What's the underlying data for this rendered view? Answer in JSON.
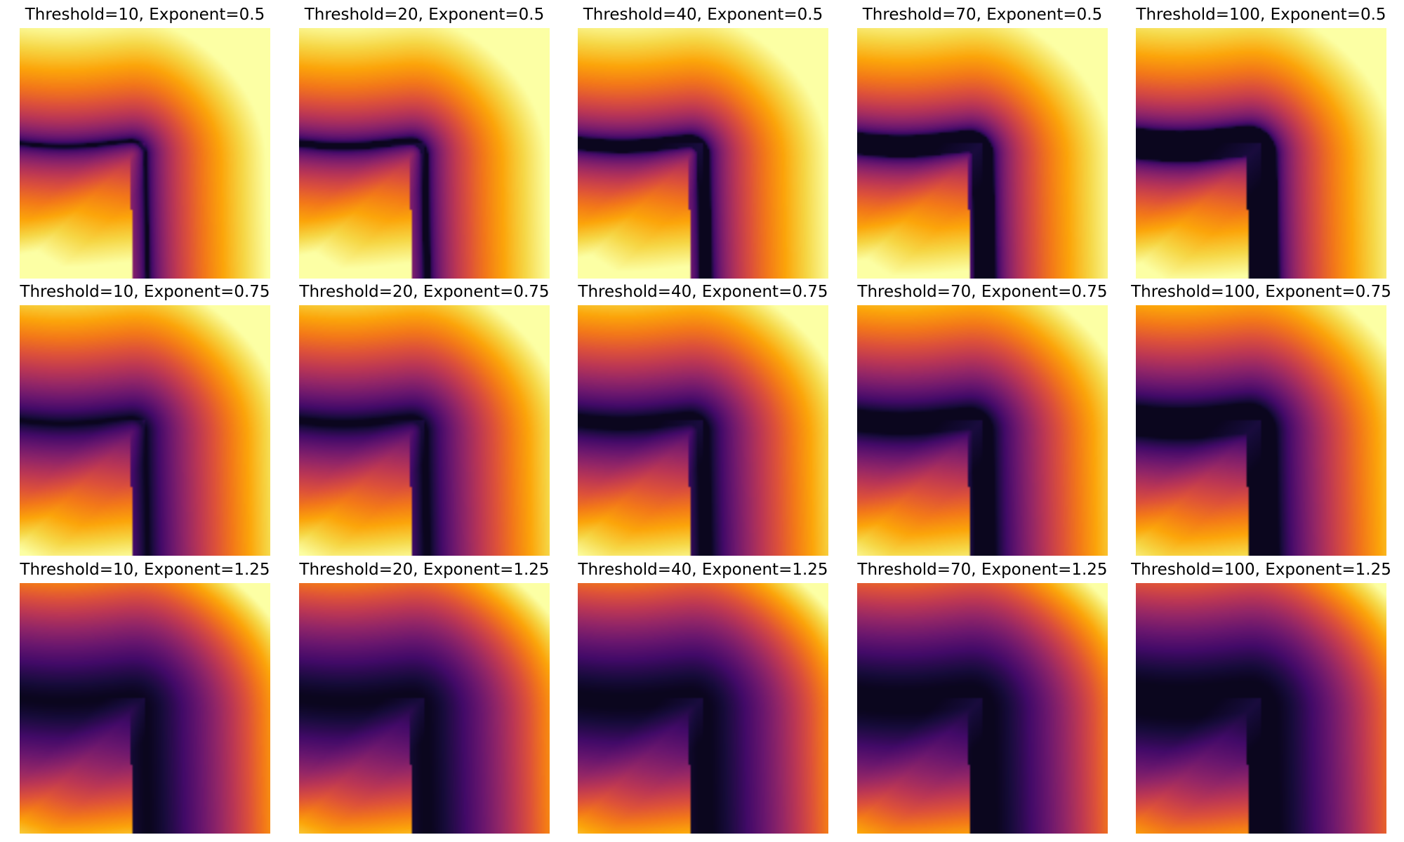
{
  "chart_data": {
    "type": "heatmap",
    "title": "",
    "colormap": "inferno",
    "axes_visible": false,
    "grid": false,
    "rows": [
      {
        "exponent": 0.5,
        "panels": [
          {
            "title": "Threshold=10, Exponent=0.5",
            "threshold": 10,
            "exponent": 0.5
          },
          {
            "title": "Threshold=20, Exponent=0.5",
            "threshold": 20,
            "exponent": 0.5
          },
          {
            "title": "Threshold=40, Exponent=0.5",
            "threshold": 40,
            "exponent": 0.5
          },
          {
            "title": "Threshold=70, Exponent=0.5",
            "threshold": 70,
            "exponent": 0.5
          },
          {
            "title": "Threshold=100, Exponent=0.5",
            "threshold": 100,
            "exponent": 0.5
          }
        ]
      },
      {
        "exponent": 0.75,
        "panels": [
          {
            "title": "Threshold=10, Exponent=0.75",
            "threshold": 10,
            "exponent": 0.75
          },
          {
            "title": "Threshold=20, Exponent=0.75",
            "threshold": 20,
            "exponent": 0.75
          },
          {
            "title": "Threshold=40, Exponent=0.75",
            "threshold": 40,
            "exponent": 0.75
          },
          {
            "title": "Threshold=70, Exponent=0.75",
            "threshold": 70,
            "exponent": 0.75
          },
          {
            "title": "Threshold=100, Exponent=0.75",
            "threshold": 100,
            "exponent": 0.75
          }
        ]
      },
      {
        "exponent": 1.25,
        "panels": [
          {
            "title": "Threshold=10, Exponent=1.25",
            "threshold": 10,
            "exponent": 1.25
          },
          {
            "title": "Threshold=20, Exponent=1.25",
            "threshold": 20,
            "exponent": 1.25
          },
          {
            "title": "Threshold=40, Exponent=1.25",
            "threshold": 40,
            "exponent": 1.25
          },
          {
            "title": "Threshold=70, Exponent=1.25",
            "threshold": 70,
            "exponent": 1.25
          },
          {
            "title": "Threshold=100, Exponent=1.25",
            "threshold": 100,
            "exponent": 1.25
          }
        ]
      }
    ]
  }
}
